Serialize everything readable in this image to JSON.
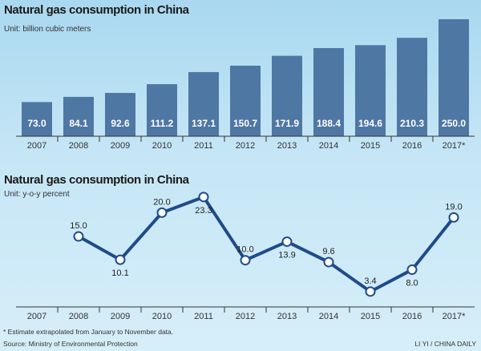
{
  "chart_data": [
    {
      "type": "bar",
      "title": "Natural gas consumption in China",
      "subtitle": "Unit: billion cubic meters",
      "categories": [
        "2007",
        "2008",
        "2009",
        "2010",
        "2011",
        "2012",
        "2013",
        "2014",
        "2015",
        "2016",
        "2017*"
      ],
      "values": [
        73.0,
        84.1,
        92.6,
        111.2,
        137.1,
        150.7,
        171.9,
        188.4,
        194.6,
        210.3,
        250.0
      ],
      "labels": [
        "73.0",
        "84.1",
        "92.6",
        "111.2",
        "137.1",
        "150.7",
        "171.9",
        "188.4",
        "194.6",
        "210.3",
        "250.0"
      ],
      "ylim": [
        0,
        250
      ],
      "color": "#4f77a3"
    },
    {
      "type": "line",
      "title": "Natural gas consumption in China",
      "subtitle": "Unit: y-o-y percent",
      "categories": [
        "2007",
        "2008",
        "2009",
        "2010",
        "2011",
        "2012",
        "2013",
        "2014",
        "2015",
        "2016",
        "2017*"
      ],
      "values": [
        null,
        15.0,
        10.1,
        20.0,
        23.3,
        10.0,
        13.9,
        9.6,
        3.4,
        8.0,
        19.0
      ],
      "labels": [
        "",
        "15.0",
        "10.1",
        "20.0",
        "23.3",
        "10.0",
        "13.9",
        "9.6",
        "3.4",
        "8.0",
        "19.0"
      ],
      "label_positions": [
        "",
        "above",
        "below",
        "above",
        "below",
        "above",
        "below",
        "above",
        "above",
        "below",
        "above"
      ],
      "ylim": [
        0,
        25
      ],
      "color": "#1f4b8a"
    }
  ],
  "footnote": "* Estimate extrapolated from January to November data.",
  "source": "Source: Ministry of Environmental Protection",
  "credit": "LI YI / CHINA DAILY"
}
